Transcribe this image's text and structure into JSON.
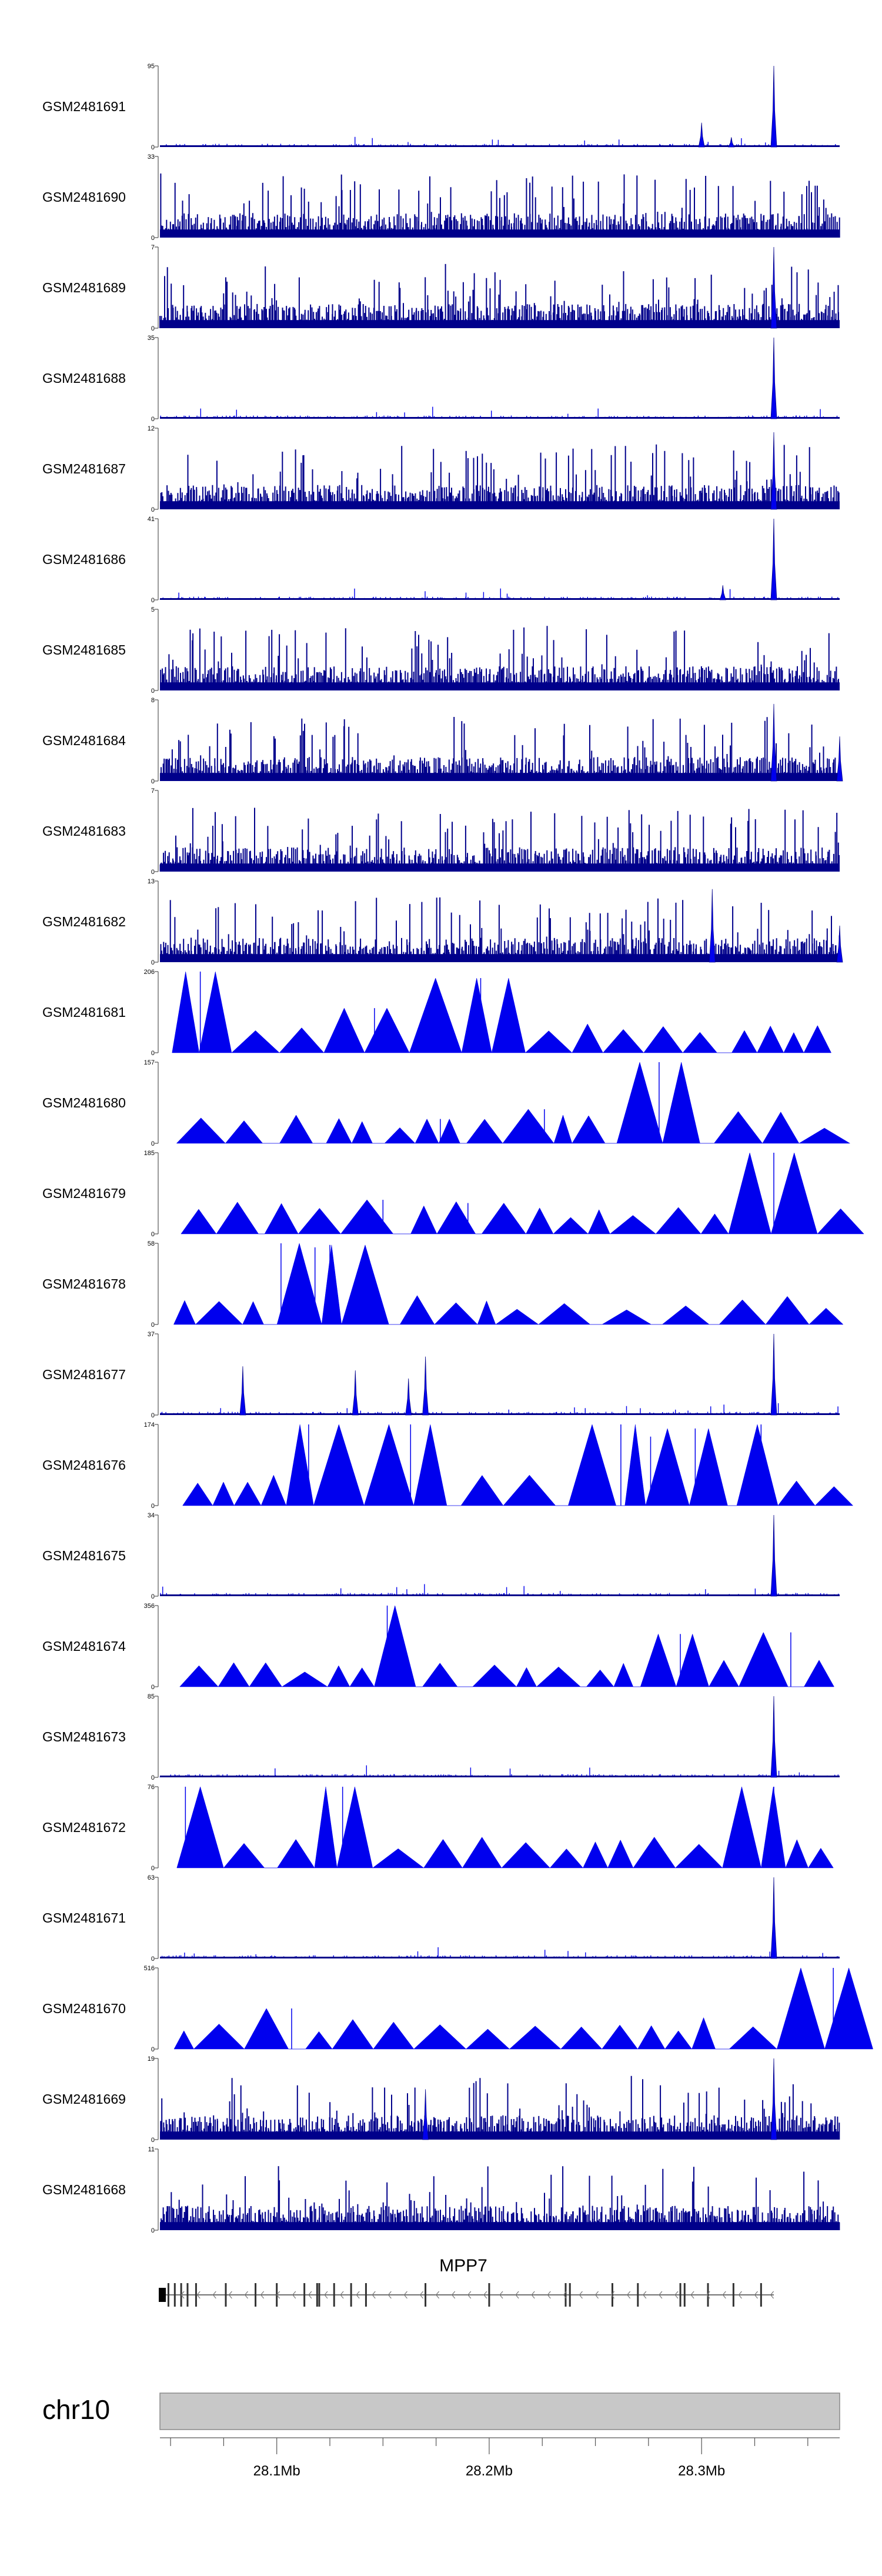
{
  "chart_data": {
    "type": "area",
    "title": "",
    "chromosome": "chr10",
    "gene": {
      "name": "MPP7",
      "strand": "-",
      "start_mb": 28.045,
      "end_mb": 28.334
    },
    "x_axis": {
      "unit": "Mb",
      "range": [
        28.045,
        28.365
      ],
      "tick_labels": [
        "28.1Mb",
        "28.2Mb",
        "28.3Mb"
      ],
      "tick_values": [
        28.1,
        28.2,
        28.3
      ]
    },
    "colors": {
      "signal": "#0000ee",
      "signal_dense": "#00008b",
      "axis": "#555555",
      "ideogram": "#c8c8c8"
    },
    "tracks": [
      {
        "name": "GSM2481691",
        "ymax": 95,
        "ymin": 0,
        "style": "sparse",
        "peaks": [
          [
            28.334,
            1.0
          ],
          [
            28.3,
            0.3
          ],
          [
            28.314,
            0.12
          ]
        ]
      },
      {
        "name": "GSM2481690",
        "ymax": 33,
        "ymin": 0,
        "style": "dense",
        "peaks": []
      },
      {
        "name": "GSM2481689",
        "ymax": 7,
        "ymin": 0,
        "style": "dense",
        "peaks": [
          [
            28.334,
            1.0
          ]
        ]
      },
      {
        "name": "GSM2481688",
        "ymax": 35,
        "ymin": 0,
        "style": "sparse",
        "peaks": [
          [
            28.334,
            1.0
          ]
        ]
      },
      {
        "name": "GSM2481687",
        "ymax": 12,
        "ymin": 0,
        "style": "dense",
        "peaks": [
          [
            28.334,
            0.95
          ]
        ]
      },
      {
        "name": "GSM2481686",
        "ymax": 41,
        "ymin": 0,
        "style": "sparse",
        "peaks": [
          [
            28.334,
            1.0
          ],
          [
            28.31,
            0.18
          ]
        ]
      },
      {
        "name": "GSM2481685",
        "ymax": 5,
        "ymin": 0,
        "style": "dense",
        "peaks": []
      },
      {
        "name": "GSM2481684",
        "ymax": 8,
        "ymin": 0,
        "style": "dense",
        "peaks": [
          [
            28.334,
            0.95
          ],
          [
            28.365,
            0.55
          ]
        ]
      },
      {
        "name": "GSM2481683",
        "ymax": 7,
        "ymin": 0,
        "style": "dense",
        "peaks": []
      },
      {
        "name": "GSM2481682",
        "ymax": 13,
        "ymin": 0,
        "style": "dense",
        "peaks": [
          [
            28.305,
            0.9
          ],
          [
            28.365,
            0.45
          ]
        ]
      },
      {
        "name": "GSM2481681",
        "ymax": 206,
        "ymin": 0,
        "style": "triangles",
        "peaks": [
          [
            28.064,
            1.0
          ],
          [
            28.146,
            0.55
          ],
          [
            28.196,
            0.92
          ]
        ]
      },
      {
        "name": "GSM2481680",
        "ymax": 157,
        "ymin": 0,
        "style": "triangles",
        "peaks": [
          [
            28.28,
            1.0
          ],
          [
            28.226,
            0.42
          ],
          [
            28.177,
            0.3
          ]
        ]
      },
      {
        "name": "GSM2481679",
        "ymax": 185,
        "ymin": 0,
        "style": "triangles",
        "peaks": [
          [
            28.334,
            1.0
          ],
          [
            28.15,
            0.42
          ],
          [
            28.19,
            0.38
          ]
        ]
      },
      {
        "name": "GSM2481678",
        "ymax": 58,
        "ymin": 0,
        "style": "triangles",
        "peaks": [
          [
            28.102,
            1.0
          ],
          [
            28.125,
            0.98
          ],
          [
            28.118,
            0.95
          ]
        ]
      },
      {
        "name": "GSM2481677",
        "ymax": 37,
        "ymin": 0,
        "style": "sparse",
        "peaks": [
          [
            28.334,
            1.0
          ],
          [
            28.084,
            0.6
          ],
          [
            28.17,
            0.72
          ],
          [
            28.162,
            0.45
          ],
          [
            28.137,
            0.55
          ]
        ]
      },
      {
        "name": "GSM2481676",
        "ymax": 174,
        "ymin": 0,
        "style": "triangles",
        "peaks": [
          [
            28.115,
            1.0
          ],
          [
            28.163,
            1.0
          ],
          [
            28.262,
            1.0
          ],
          [
            28.276,
            0.85
          ],
          [
            28.297,
            0.95
          ],
          [
            28.328,
            1.0
          ]
        ]
      },
      {
        "name": "GSM2481675",
        "ymax": 34,
        "ymin": 0,
        "style": "sparse",
        "peaks": [
          [
            28.334,
            1.0
          ]
        ]
      },
      {
        "name": "GSM2481674",
        "ymax": 356,
        "ymin": 0,
        "style": "triangles",
        "peaks": [
          [
            28.152,
            1.0
          ],
          [
            28.29,
            0.65
          ],
          [
            28.342,
            0.67
          ]
        ]
      },
      {
        "name": "GSM2481673",
        "ymax": 85,
        "ymin": 0,
        "style": "sparse",
        "peaks": [
          [
            28.334,
            1.0
          ]
        ]
      },
      {
        "name": "GSM2481672",
        "ymax": 76,
        "ymin": 0,
        "style": "triangles",
        "peaks": [
          [
            28.057,
            1.0
          ],
          [
            28.131,
            1.0
          ],
          [
            28.334,
            1.0
          ]
        ]
      },
      {
        "name": "GSM2481671",
        "ymax": 63,
        "ymin": 0,
        "style": "sparse",
        "peaks": [
          [
            28.334,
            1.0
          ]
        ]
      },
      {
        "name": "GSM2481670",
        "ymax": 516,
        "ymin": 0,
        "style": "triangles",
        "peaks": [
          [
            28.362,
            1.0
          ],
          [
            28.107,
            0.5
          ]
        ]
      },
      {
        "name": "GSM2481669",
        "ymax": 19,
        "ymin": 0,
        "style": "dense",
        "peaks": [
          [
            28.334,
            1.0
          ],
          [
            28.17,
            0.62
          ]
        ]
      },
      {
        "name": "GSM2481668",
        "ymax": 11,
        "ymin": 0,
        "style": "dense",
        "peaks": []
      }
    ]
  }
}
